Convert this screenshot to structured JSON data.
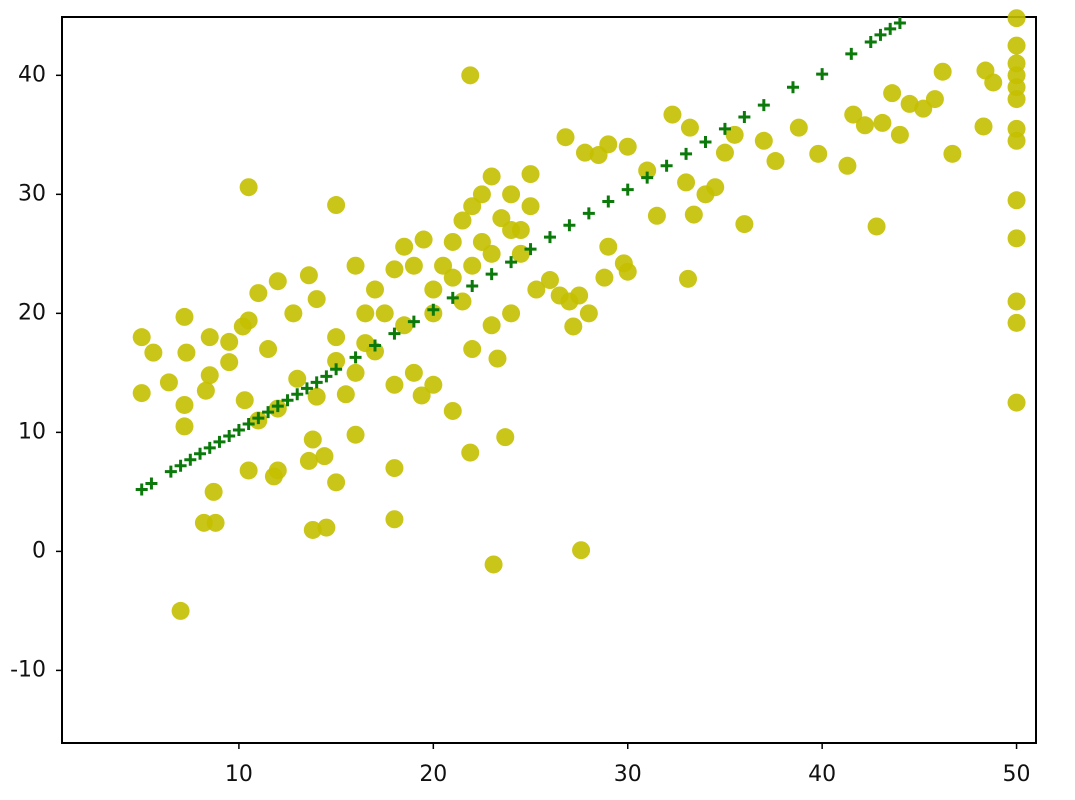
{
  "chart_data": {
    "type": "scatter",
    "xlim": [
      0.9,
      51
    ],
    "ylim": [
      -16.1,
      44.9
    ],
    "xticks": [
      10,
      20,
      30,
      40,
      50
    ],
    "yticks": [
      -10,
      0,
      10,
      20,
      30,
      40
    ],
    "grid": false,
    "series": [
      {
        "color": "#c4c000",
        "marker": "o",
        "x": [
          7,
          23.1,
          27.6,
          13.8,
          14.5,
          18,
          8.2,
          8.8,
          8.7,
          15,
          10.5,
          11.8,
          12,
          18,
          13.6,
          14.4,
          21.9,
          23.7,
          13.8,
          16,
          21,
          15,
          10.5,
          21.9,
          5,
          5.6,
          5,
          6.4,
          7.2,
          7.3,
          7.2,
          7.2,
          8.5,
          8.5,
          8.3,
          9.5,
          9.5,
          10.2,
          10.5,
          11,
          11.5,
          12,
          13.6,
          12.8,
          14,
          15,
          16,
          16.5,
          17,
          18,
          18.5,
          19,
          19.5,
          20,
          20.5,
          21,
          21.5,
          22,
          22.5,
          23,
          23.5,
          24,
          24.5,
          25,
          25.3,
          22,
          23,
          24,
          23.3,
          19,
          18,
          17,
          16,
          15.5,
          14,
          13,
          12,
          11,
          10.3,
          19.4,
          20,
          26,
          26.5,
          27,
          27.5,
          28,
          27.2,
          26.8,
          27.8,
          28.5,
          29,
          30,
          31,
          32.3,
          33.2,
          33,
          34,
          34.5,
          35,
          35.5,
          36,
          37,
          37.6,
          38.8,
          39.8,
          41.3,
          41.6,
          42.2,
          42.8,
          43.1,
          43.6,
          44,
          44.5,
          45.2,
          45.8,
          46.2,
          46.7,
          48.3,
          48.4,
          48.8,
          33.1,
          33.4,
          30,
          29.8,
          29,
          28.8,
          31.5,
          50,
          50,
          50,
          50,
          50,
          50,
          50,
          50,
          50,
          50,
          50,
          50,
          50,
          20,
          21,
          22,
          22.5,
          23,
          24,
          21.5,
          18.5,
          17.5,
          16.5,
          15,
          25,
          24.5
        ],
        "values": [
          -5,
          -1.1,
          0.1,
          1.8,
          2,
          2.7,
          2.4,
          2.4,
          5,
          5.8,
          6.8,
          6.3,
          6.8,
          7,
          7.6,
          8,
          8.3,
          9.6,
          9.4,
          9.8,
          11.8,
          29.1,
          30.6,
          40,
          18,
          16.7,
          13.3,
          14.2,
          19.7,
          16.7,
          12.3,
          10.5,
          18,
          14.8,
          13.5,
          15.9,
          17.6,
          18.9,
          19.4,
          21.7,
          17,
          22.7,
          23.2,
          20,
          21.2,
          18,
          24,
          20,
          22,
          23.7,
          25.6,
          24,
          26.2,
          22,
          24,
          26,
          27.8,
          29,
          30,
          31.5,
          28,
          30,
          27,
          31.7,
          22,
          17,
          19,
          20,
          16.2,
          15,
          14,
          16.8,
          15,
          13.2,
          13,
          14.5,
          12,
          11,
          12.7,
          13.1,
          14,
          22.8,
          21.5,
          21,
          21.5,
          20,
          18.9,
          34.8,
          33.5,
          33.3,
          34.2,
          34,
          32,
          36.7,
          35.6,
          31,
          30,
          30.6,
          33.5,
          35,
          27.5,
          34.5,
          32.8,
          35.6,
          33.4,
          32.4,
          36.7,
          35.8,
          27.3,
          36,
          38.5,
          35,
          37.6,
          37.2,
          38,
          40.3,
          33.4,
          35.7,
          40.4,
          39.4,
          22.9,
          28.3,
          23.5,
          24.2,
          25.6,
          23,
          28.2,
          44.8,
          42.5,
          41,
          40,
          39,
          38,
          35.5,
          34.5,
          29.5,
          26.3,
          21,
          19.2,
          12.5,
          20,
          23,
          24,
          26,
          25,
          27,
          21,
          19,
          20,
          17.5,
          16,
          29,
          25
        ]
      },
      {
        "color": "#0b7a0b",
        "marker": "+",
        "x": [
          5,
          5.5,
          6.5,
          7,
          7.5,
          8,
          8.5,
          9,
          9.5,
          10,
          10.5,
          11,
          11.5,
          12,
          12.5,
          13,
          13.5,
          14,
          14.5,
          15,
          16,
          17,
          18,
          19,
          20,
          21,
          22,
          23,
          24,
          25,
          26,
          27,
          28,
          29,
          30,
          31,
          32,
          33,
          34,
          35,
          36,
          37,
          38.5,
          40,
          41.5,
          42.5,
          43,
          43.5,
          44
        ],
        "values": [
          5.2,
          5.7,
          6.7,
          7.2,
          7.7,
          8.2,
          8.7,
          9.2,
          9.7,
          10.2,
          10.7,
          11.2,
          11.7,
          12.2,
          12.7,
          13.2,
          13.7,
          14.2,
          14.7,
          15.3,
          16.3,
          17.3,
          18.3,
          19.3,
          20.3,
          21.3,
          22.3,
          23.3,
          24.3,
          25.4,
          26.4,
          27.4,
          28.4,
          29.4,
          30.4,
          31.4,
          32.4,
          33.4,
          34.4,
          35.5,
          36.5,
          37.5,
          39,
          40.1,
          41.8,
          42.8,
          43.4,
          43.9,
          44.4
        ]
      }
    ]
  }
}
